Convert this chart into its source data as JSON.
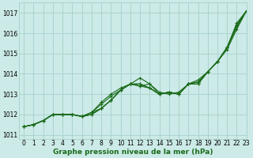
{
  "title": "Graphe pression niveau de la mer (hPa)",
  "bg_color": "#cceae7",
  "grid_color": "#aad4d0",
  "line_color": "#1a6b1a",
  "xlim": [
    -0.5,
    23
  ],
  "ylim": [
    1010.8,
    1017.5
  ],
  "yticks": [
    1011,
    1012,
    1013,
    1014,
    1015,
    1016,
    1017
  ],
  "xticks": [
    0,
    1,
    2,
    3,
    4,
    5,
    6,
    7,
    8,
    9,
    10,
    11,
    12,
    13,
    14,
    15,
    16,
    17,
    18,
    19,
    20,
    21,
    22,
    23
  ],
  "series": [
    [
      1011.4,
      1011.5,
      1011.7,
      1012.0,
      1012.0,
      1012.0,
      1011.9,
      1012.0,
      1012.3,
      1012.7,
      1013.2,
      1013.5,
      1013.8,
      1013.5,
      1013.1,
      1013.0,
      1013.1,
      1013.5,
      1013.6,
      1014.1,
      1014.6,
      1015.3,
      1016.5,
      1017.1
    ],
    [
      1011.4,
      1011.5,
      1011.7,
      1012.0,
      1012.0,
      1012.0,
      1011.9,
      1012.0,
      1012.3,
      1012.7,
      1013.2,
      1013.5,
      1013.4,
      1013.5,
      1013.0,
      1013.1,
      1013.0,
      1013.5,
      1013.5,
      1014.1,
      1014.6,
      1015.3,
      1016.3,
      1017.1
    ],
    [
      1011.4,
      1011.5,
      1011.7,
      1012.0,
      1012.0,
      1012.0,
      1011.9,
      1012.1,
      1012.3,
      1012.7,
      1013.2,
      1013.5,
      1013.4,
      1013.3,
      1013.0,
      1013.1,
      1013.0,
      1013.5,
      1013.5,
      1014.1,
      1014.6,
      1015.2,
      1016.2,
      1017.1
    ],
    [
      1011.4,
      1011.5,
      1011.7,
      1012.0,
      1012.0,
      1012.0,
      1011.9,
      1012.1,
      1012.5,
      1012.9,
      1013.2,
      1013.5,
      1013.5,
      1013.3,
      1013.0,
      1013.1,
      1013.0,
      1013.5,
      1013.6,
      1014.1,
      1014.6,
      1015.3,
      1016.4,
      1017.1
    ],
    [
      1011.4,
      1011.5,
      1011.7,
      1012.0,
      1012.0,
      1012.0,
      1011.9,
      1012.1,
      1012.6,
      1013.0,
      1013.3,
      1013.5,
      1013.5,
      1013.3,
      1013.0,
      1013.1,
      1013.0,
      1013.5,
      1013.7,
      1014.1,
      1014.6,
      1015.3,
      1016.4,
      1017.1
    ]
  ]
}
